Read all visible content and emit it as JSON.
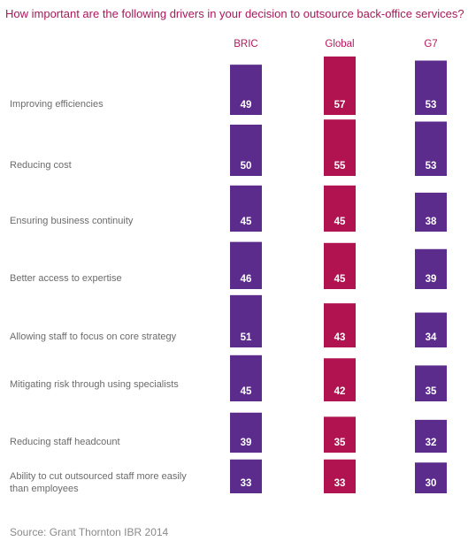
{
  "title": "How important are the following drivers in your decision to outsource back-office services?",
  "source": "Source: Grant Thornton IBR 2014",
  "colors": {
    "BRIC": "#5b2c8c",
    "Global": "#b0134f",
    "G7": "#5b2c8c",
    "title": "#a6195a",
    "value_text": "#ffffff"
  },
  "chart_data": {
    "type": "bar",
    "title": "How important are the following drivers in your decision to outsource back-office services?",
    "categories": [
      "Improving efficiencies",
      "Reducing cost",
      "Ensuring business continuity",
      "Better access to expertise",
      "Allowing staff to focus on core strategy",
      "Mitigating risk through using specialists",
      "Reducing staff headcount",
      "Ability to cut outsourced staff more easily than employees"
    ],
    "series": [
      {
        "name": "BRIC",
        "values": [
          49,
          50,
          45,
          46,
          51,
          45,
          39,
          33
        ]
      },
      {
        "name": "Global",
        "values": [
          57,
          55,
          45,
          45,
          43,
          42,
          35,
          33
        ]
      },
      {
        "name": "G7",
        "values": [
          53,
          53,
          38,
          39,
          34,
          35,
          32,
          30
        ]
      }
    ]
  }
}
